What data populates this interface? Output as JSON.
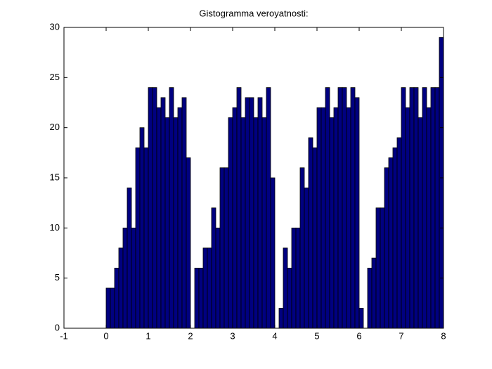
{
  "chart_data": {
    "type": "histogram",
    "title": "Gistogramma veroyatnosti:",
    "bins": [
      0,
      0.1,
      0.2,
      0.3,
      0.4,
      0.5,
      0.6,
      0.7,
      0.8,
      0.9,
      1,
      1.1,
      1.2,
      1.3,
      1.4,
      1.5,
      1.6,
      1.7,
      1.8,
      1.9,
      2,
      2.1,
      2.2,
      2.3,
      2.4,
      2.5,
      2.6,
      2.7,
      2.8,
      2.9,
      3,
      3.1,
      3.2,
      3.3,
      3.4,
      3.5,
      3.6,
      3.7,
      3.8,
      3.9,
      4,
      4.1,
      4.2,
      4.3,
      4.4,
      4.5,
      4.6,
      4.7,
      4.8,
      4.9,
      5,
      5.1,
      5.2,
      5.3,
      5.4,
      5.5,
      5.6,
      5.7,
      5.8,
      5.9,
      6,
      6.1,
      6.2,
      6.3,
      6.4,
      6.5,
      6.6,
      6.7,
      6.8,
      6.9,
      7,
      7.1,
      7.2,
      7.3,
      7.4,
      7.5,
      7.6,
      7.7,
      7.8,
      7.9,
      8
    ],
    "values": [
      4,
      4,
      6,
      8,
      10,
      14,
      10,
      18,
      20,
      18,
      24,
      24,
      22,
      23,
      21,
      24,
      21,
      22,
      23,
      17,
      0,
      6,
      6,
      8,
      8,
      12,
      10,
      16,
      16,
      21,
      22,
      24,
      21,
      23,
      23,
      21,
      23,
      21,
      24,
      15,
      0,
      2,
      8,
      6,
      10,
      10,
      16,
      14,
      19,
      18,
      22,
      22,
      24,
      21,
      22,
      24,
      24,
      22,
      24,
      23,
      2,
      0,
      6,
      7,
      12,
      12,
      16,
      17,
      18,
      19,
      24,
      22,
      24,
      24,
      21,
      24,
      22,
      24,
      24,
      29
    ],
    "color": "#000080",
    "xlim": [
      -1,
      8
    ],
    "xticks": [
      -1,
      0,
      1,
      2,
      3,
      4,
      5,
      6,
      7,
      8
    ],
    "ylim": [
      0,
      30
    ],
    "yticks": [
      0,
      5,
      10,
      15,
      20,
      25,
      30
    ]
  }
}
